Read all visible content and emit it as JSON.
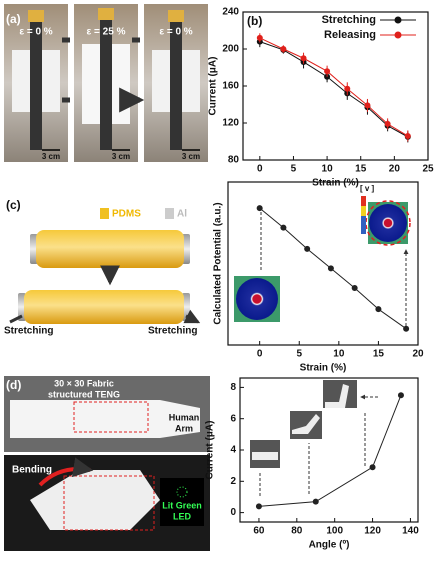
{
  "figure": {
    "a": {
      "label": "(a)",
      "strain_labels": [
        "ε = 0 %",
        "ε = 25 %",
        "ε = 0 %"
      ],
      "scale_bars": [
        "3 cm",
        "3 cm",
        "3 cm"
      ]
    },
    "c": {
      "label": "(c)",
      "materials": [
        "PDMS",
        "Al"
      ],
      "stretch_labels": [
        "Stretching",
        "Stretching"
      ],
      "colorbar_label": "[ v ]"
    },
    "d": {
      "label": "(d)",
      "device": [
        "30 × 30 Fabric",
        "structured TENG"
      ],
      "arm": [
        "Human",
        "Arm"
      ],
      "bending": "Bending",
      "led": [
        "Lit Green",
        "LED"
      ]
    }
  },
  "chart_data": [
    {
      "type": "line",
      "label": "(b)",
      "xlabel": "Strain (%)",
      "ylabel": "Current (μA)",
      "x": [
        0,
        3.5,
        6.5,
        10,
        13,
        16,
        19,
        22
      ],
      "series": [
        {
          "name": "Stretching",
          "color": "#111111",
          "values": [
            208,
            199,
            186,
            170,
            152,
            137,
            117,
            105
          ],
          "errors": [
            6,
            4,
            7,
            6,
            7,
            8,
            6,
            6
          ]
        },
        {
          "name": "Releasing",
          "color": "#e0201b",
          "values": [
            212,
            200,
            190,
            176,
            157,
            139,
            119,
            106
          ],
          "errors": [
            5,
            4,
            6,
            6,
            7,
            7,
            6,
            6
          ]
        }
      ],
      "xlim": [
        -2.5,
        25
      ],
      "ylim": [
        80,
        240
      ],
      "xticks": [
        0,
        5,
        10,
        15,
        20,
        25
      ],
      "yticks": [
        80,
        120,
        160,
        200,
        240
      ],
      "legend": "upper right"
    },
    {
      "type": "line",
      "xlabel": "Strain (%)",
      "ylabel": "Calculated Potential (a.u.)",
      "x": [
        0,
        3,
        6,
        9,
        12,
        15,
        18.5
      ],
      "series": [
        {
          "color": "#222222",
          "values": [
            0.84,
            0.72,
            0.59,
            0.47,
            0.35,
            0.22,
            0.1
          ]
        }
      ],
      "xlim": [
        -4,
        20
      ],
      "ylim": [
        0,
        1
      ],
      "xticks": [
        0,
        5,
        10,
        15,
        20
      ]
    },
    {
      "type": "line",
      "xlabel": "Angle (º)",
      "ylabel": "Current (μA)",
      "x": [
        60,
        90,
        120,
        135
      ],
      "series": [
        {
          "color": "#222222",
          "values": [
            0.4,
            0.7,
            2.9,
            7.5
          ]
        }
      ],
      "xlim": [
        50,
        144
      ],
      "ylim": [
        -0.6,
        8.6
      ],
      "xticks": [
        60,
        80,
        100,
        120,
        140
      ],
      "yticks": [
        0,
        2,
        4,
        6,
        8
      ]
    }
  ]
}
